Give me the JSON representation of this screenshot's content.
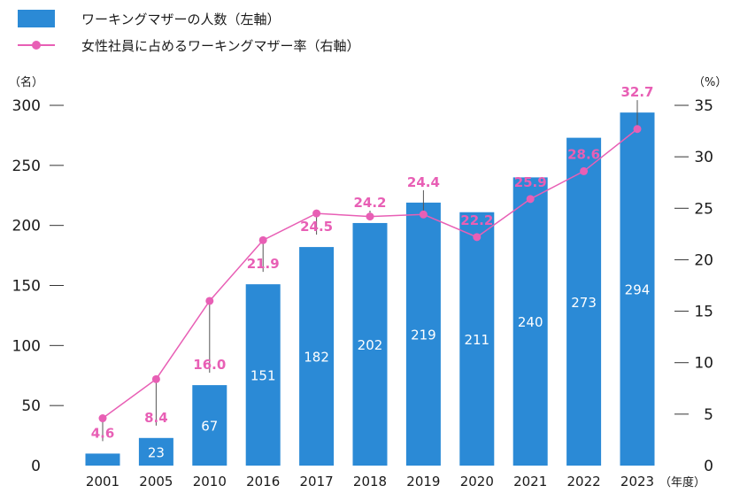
{
  "legend": {
    "bars_label": "ワーキングマザーの人数（左軸）",
    "line_label": "女性社員に占めるワーキングマザー率（右軸）"
  },
  "colors": {
    "bar": "#2b8ad6",
    "line": "#e85fb5",
    "bar_label_first": "#2b8ad6",
    "bar_label": "#ffffff"
  },
  "chart_data": {
    "type": "bar",
    "categories": [
      "2001",
      "2005",
      "2010",
      "2016",
      "2017",
      "2018",
      "2019",
      "2020",
      "2021",
      "2022",
      "2023"
    ],
    "series": [
      {
        "name": "ワーキングマザーの人数（左軸）",
        "type": "bar",
        "axis": "left",
        "values": [
          10,
          23,
          67,
          151,
          182,
          202,
          219,
          211,
          240,
          273,
          294
        ]
      },
      {
        "name": "女性社員に占めるワーキングマザー率（右軸）",
        "type": "line",
        "axis": "right",
        "values": [
          4.6,
          8.4,
          16.0,
          21.9,
          24.5,
          24.2,
          24.4,
          22.2,
          25.9,
          28.6,
          32.7
        ],
        "labels": [
          "4.6",
          "8.4",
          "16.0",
          "21.9",
          "24.5",
          "24.2",
          "24.4",
          "22.2",
          "25.9",
          "28.6",
          "32.7"
        ]
      }
    ],
    "left_axis": {
      "unit": "（名）",
      "ylim": [
        0,
        300
      ],
      "ticks": [
        0,
        50,
        100,
        150,
        200,
        250,
        300
      ]
    },
    "right_axis": {
      "unit": "（%）",
      "ylim": [
        0,
        35
      ],
      "ticks": [
        0,
        5,
        10,
        15,
        20,
        25,
        30,
        35
      ]
    },
    "x_unit": "（年度）"
  }
}
